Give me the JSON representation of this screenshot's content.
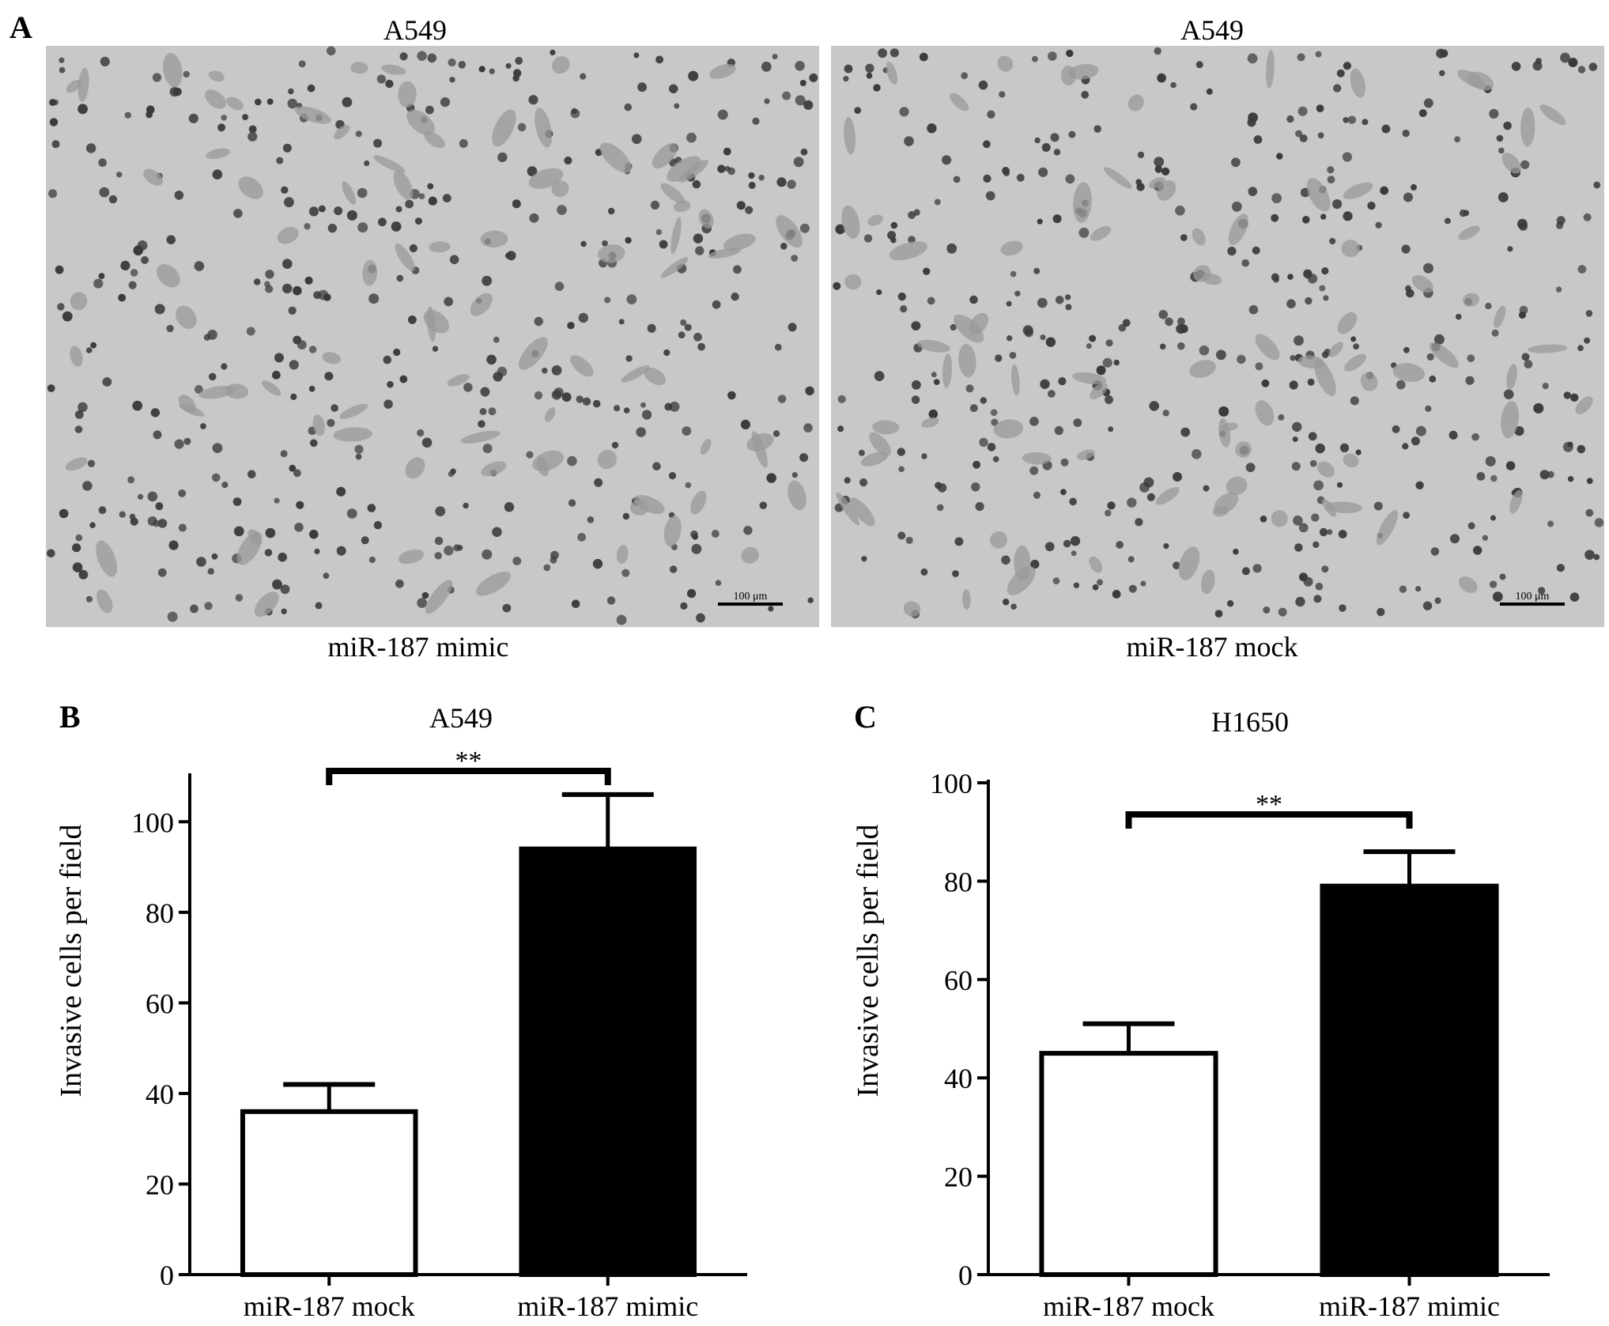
{
  "panel_a": {
    "letter": "A",
    "images": [
      {
        "title": "A549",
        "caption": "miR-187 mimic",
        "scale_bar": "100 μm"
      },
      {
        "title": "A549",
        "caption": "miR-187 mock",
        "scale_bar": "100 μm"
      }
    ]
  },
  "chart_data": [
    {
      "panel": "B",
      "type": "bar",
      "title": "A549",
      "ylabel": "Invasive cells  per field",
      "categories": [
        "miR-187 mock",
        "miR-187 mimic"
      ],
      "values": [
        36,
        94
      ],
      "errors": [
        6,
        12
      ],
      "bar_colors": [
        "#ffffff",
        "#000000"
      ],
      "ylim": [
        0,
        110
      ],
      "yticks": [
        0,
        20,
        40,
        60,
        80,
        100
      ],
      "significance": "**"
    },
    {
      "panel": "C",
      "type": "bar",
      "title": "H1650",
      "ylabel": "Invasive cells  per field",
      "categories": [
        "miR-187 mock",
        "miR-187 mimic"
      ],
      "values": [
        45,
        79
      ],
      "errors": [
        6,
        7
      ],
      "bar_colors": [
        "#ffffff",
        "#000000"
      ],
      "ylim": [
        0,
        100
      ],
      "yticks": [
        0,
        20,
        40,
        60,
        80,
        100
      ],
      "significance": "**"
    }
  ]
}
